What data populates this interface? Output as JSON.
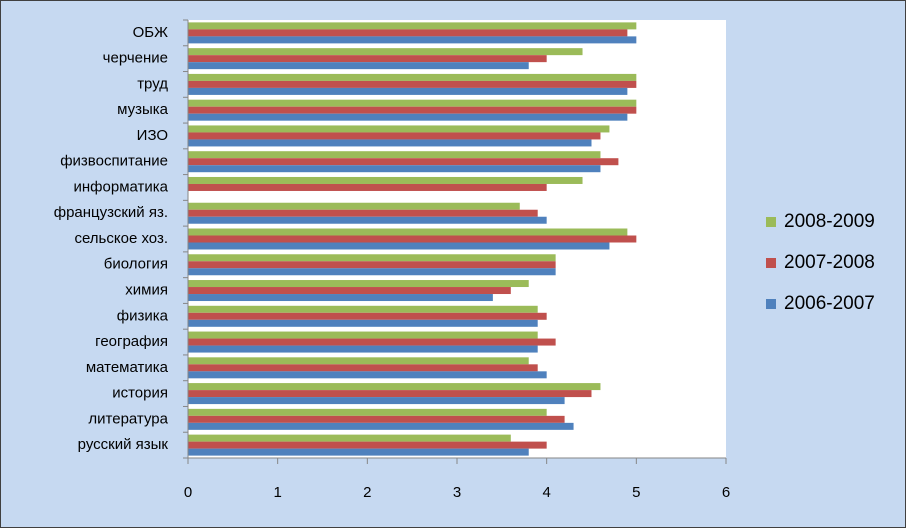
{
  "chart_data": {
    "type": "bar",
    "orientation": "horizontal",
    "categories": [
      "ОБЖ",
      "черчение",
      "труд",
      "музыка",
      "ИЗО",
      "физвоспитание",
      "информатика",
      "французский яз.",
      "сельское хоз.",
      "биология",
      "химия",
      "физика",
      "география",
      "математика",
      "история",
      "литература",
      "русский язык"
    ],
    "series": [
      {
        "name": "2008-2009",
        "color": "#9bbb59",
        "values": [
          5.0,
          4.4,
          5.0,
          5.0,
          4.7,
          4.6,
          4.4,
          3.7,
          4.9,
          4.1,
          3.8,
          3.9,
          3.9,
          3.8,
          4.6,
          4.0,
          3.6
        ]
      },
      {
        "name": "2007-2008",
        "color": "#c0504d",
        "values": [
          4.9,
          4.0,
          5.0,
          5.0,
          4.6,
          4.8,
          4.0,
          3.9,
          5.0,
          4.1,
          3.6,
          4.0,
          4.1,
          3.9,
          4.5,
          4.2,
          4.0
        ]
      },
      {
        "name": "2006-2007",
        "color": "#4f81bd",
        "values": [
          5.0,
          3.8,
          4.9,
          4.9,
          4.5,
          4.6,
          null,
          4.0,
          4.7,
          4.1,
          3.4,
          3.9,
          3.9,
          4.0,
          4.2,
          4.3,
          3.8
        ]
      }
    ],
    "xlim": [
      0,
      6
    ],
    "xticks": [
      0,
      1,
      2,
      3,
      4,
      5,
      6
    ],
    "legend": "right"
  }
}
